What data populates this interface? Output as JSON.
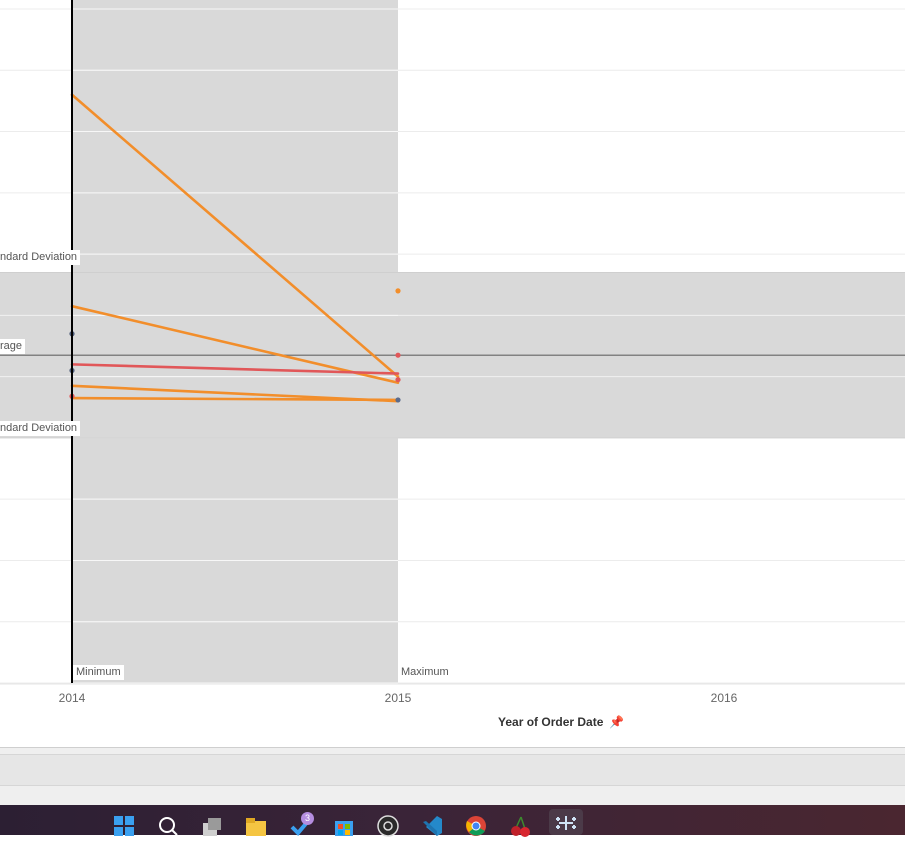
{
  "chart_data": {
    "type": "line",
    "x_categories": [
      "2014",
      "2015",
      "2016"
    ],
    "xlabel": "Year of Order Date",
    "ylabel": "",
    "series": [
      {
        "color": "#f28e2b",
        "points": [
          [
            "2014",
            8.6
          ],
          [
            "2015",
            4.0
          ]
        ]
      },
      {
        "color": "#f28e2b",
        "points": [
          [
            "2014",
            5.15
          ],
          [
            "2015",
            3.9
          ]
        ]
      },
      {
        "color": "#f28e2b",
        "points": [
          [
            "2014",
            3.85
          ],
          [
            "2015",
            3.6
          ]
        ]
      },
      {
        "color": "#f28e2b",
        "points": [
          [
            "2014",
            3.65
          ],
          [
            "2015",
            3.62
          ]
        ]
      },
      {
        "color": "#e15759",
        "points": [
          [
            "2014",
            4.2
          ],
          [
            "2015",
            4.05
          ]
        ]
      }
    ],
    "points": [
      {
        "x": "2015",
        "y": 5.4,
        "color": "#f28e2b"
      },
      {
        "x": "2015",
        "y": 4.35,
        "color": "#e15759"
      },
      {
        "x": "2015",
        "y": 3.95,
        "color": "#e15759"
      },
      {
        "x": "2015",
        "y": 3.62,
        "color": "#5b6b8c"
      },
      {
        "x": "2014",
        "y": 4.7,
        "color": "#4e5d7a"
      },
      {
        "x": "2014",
        "y": 4.1,
        "color": "#4e5d7a"
      },
      {
        "x": "2014",
        "y": 3.68,
        "color": "#e15759"
      }
    ],
    "ylim": [
      -1,
      10
    ],
    "grid": true,
    "reference_lines": {
      "average": {
        "label": "rage",
        "value": 4.35
      },
      "std_upper": {
        "label": "ndard Deviation",
        "value": 5.7
      },
      "std_lower": {
        "label": "ndard Deviation",
        "value": 3.0
      },
      "x_min": {
        "label": "Minimum",
        "x": "2014"
      },
      "x_max": {
        "label": "Maximum",
        "x": "2015"
      }
    },
    "x_axis_pin_icon": "pin-icon"
  },
  "taskbar": {
    "icons": [
      "windows-start-icon",
      "search-icon",
      "task-view-icon",
      "file-explorer-icon",
      "todo-icon",
      "store-icon",
      "obs-icon",
      "vscode-icon",
      "chrome-icon",
      "cherry-icon",
      "tableau-icon"
    ],
    "todo_badge": "3"
  },
  "colors": {
    "orange": "#f28e2b",
    "red": "#e15759",
    "band": "#d9d9d9",
    "taskbar": "#2c1f33"
  }
}
